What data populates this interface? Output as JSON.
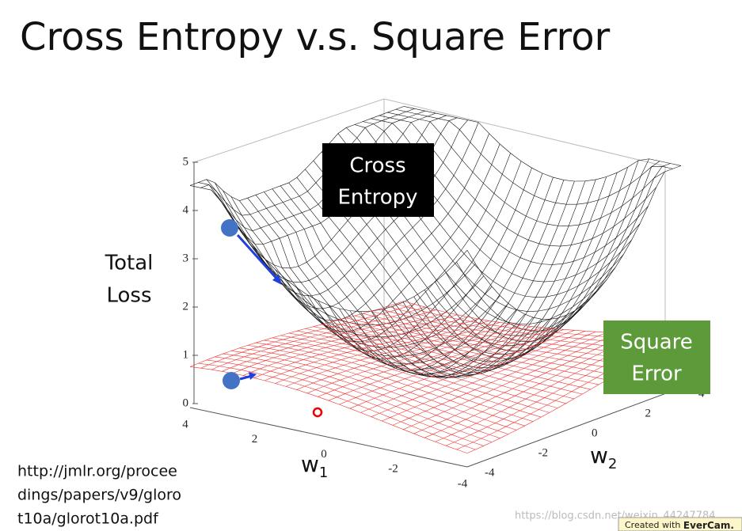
{
  "title": "Cross Entropy v.s. Square Error",
  "plot": {
    "z_label": [
      "Total",
      "Loss"
    ],
    "z_ticks": [
      0,
      1,
      2,
      3,
      4,
      5
    ],
    "w1_ticks": [
      4,
      2,
      0,
      -2,
      -4
    ],
    "w2_ticks": [
      -4,
      -2,
      0,
      2,
      4
    ],
    "w1_label": {
      "text": "w",
      "sub": "1"
    },
    "w2_label": {
      "text": "w",
      "sub": "2"
    }
  },
  "callouts": {
    "cross_entropy": [
      "Cross",
      "Entropy"
    ],
    "square_error": [
      "Square",
      "Error"
    ]
  },
  "source": [
    "http://jmlr.org/procee",
    "dings/papers/v9/gloro",
    "t10a/glorot10a.pdf"
  ],
  "watermark": "https://blog.csdn.net/weixin_44247784",
  "badge": {
    "prefix": "Created with",
    "brand": "EverCam."
  }
}
